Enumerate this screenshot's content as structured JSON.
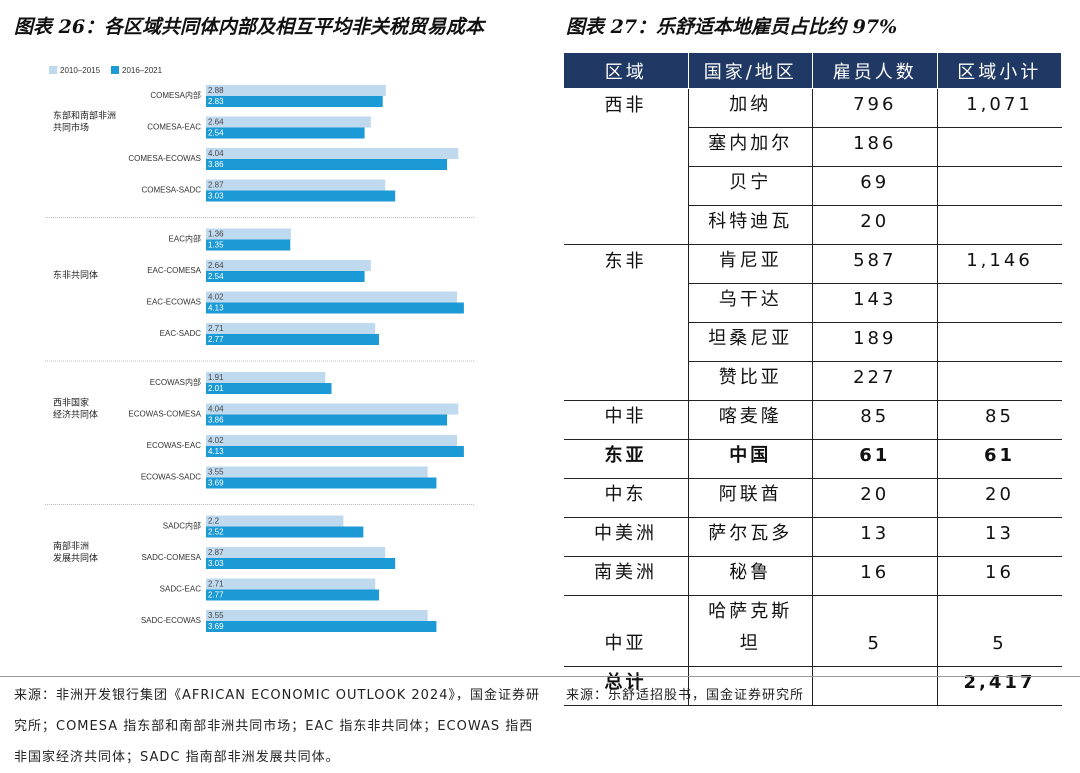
{
  "chart_data": {
    "type": "bar",
    "orientation": "horizontal",
    "title": "图表 26：各区域共同体内部及相互平均非关税贸易成本",
    "groups": [
      {
        "name": [
          "东部和南部非洲",
          "共同市场"
        ],
        "categories": [
          "COMESA内部",
          "COMESA-EAC",
          "COMESA-ECOWAS",
          "COMESA-SADC"
        ]
      },
      {
        "name": [
          "东非共同体"
        ],
        "categories": [
          "EAC内部",
          "EAC-COMESA",
          "EAC-ECOWAS",
          "EAC-SADC"
        ]
      },
      {
        "name": [
          "西非国家",
          "经济共同体"
        ],
        "categories": [
          "ECOWAS内部",
          "ECOWAS-COMESA",
          "ECOWAS-EAC",
          "ECOWAS-SADC"
        ]
      },
      {
        "name": [
          "南部非洲",
          "发展共同体"
        ],
        "categories": [
          "SADC内部",
          "SADC-COMESA",
          "SADC-EAC",
          "SADC-ECOWAS"
        ]
      }
    ],
    "series": [
      {
        "name": "2010–2015",
        "color": "#bfd9ef",
        "values": [
          2.88,
          2.64,
          4.04,
          2.87,
          1.36,
          2.64,
          4.02,
          2.71,
          1.91,
          4.04,
          4.02,
          3.55,
          2.2,
          2.87,
          2.71,
          3.55
        ]
      },
      {
        "name": "2016–2021",
        "color": "#1b9ad6",
        "values": [
          2.83,
          2.54,
          3.86,
          3.03,
          1.35,
          2.54,
          4.13,
          2.77,
          2.01,
          3.86,
          4.13,
          3.69,
          2.52,
          3.03,
          2.77,
          3.69
        ]
      }
    ],
    "xlim": [
      0,
      4.5
    ],
    "legend": "top-left",
    "source": "来源：非洲开发银行集团《AFRICAN ECONOMIC OUTLOOK 2024》，国金证券研究所；COMESA 指东部和南部非洲共同市场；EAC 指东非共同体；ECOWAS 指西非国家经济共同体；SADC 指南部非洲发展共同体。"
  },
  "table": {
    "title": "图表 27：乐舒适本地雇员占比约 97%",
    "header": [
      "区域",
      "国家/地区",
      "雇员人数",
      "区域小计"
    ],
    "rows": [
      {
        "cells": [
          "西非",
          "加纳",
          "796",
          "1,071"
        ]
      },
      {
        "cells": [
          null,
          "塞内加尔",
          "186",
          null
        ]
      },
      {
        "cells": [
          null,
          "贝宁",
          "69",
          null
        ]
      },
      {
        "cells": [
          null,
          "科特迪瓦",
          "20",
          null
        ]
      },
      {
        "cells": [
          "东非",
          "肯尼亚",
          "587",
          "1,146"
        ]
      },
      {
        "cells": [
          null,
          "乌干达",
          "143",
          null
        ]
      },
      {
        "cells": [
          null,
          "坦桑尼亚",
          "189",
          null
        ]
      },
      {
        "cells": [
          null,
          "赞比亚",
          "227",
          null
        ]
      },
      {
        "cells": [
          "中非",
          "喀麦隆",
          "85",
          "85"
        ]
      },
      {
        "cells": [
          "东亚",
          "中国",
          "61",
          "61"
        ],
        "bold": true
      },
      {
        "cells": [
          "中东",
          "阿联酋",
          "20",
          "20"
        ]
      },
      {
        "cells": [
          "中美洲",
          "萨尔瓦多",
          "13",
          "13"
        ]
      },
      {
        "cells": [
          "南美洲",
          "秘鲁",
          "16",
          "16"
        ]
      },
      {
        "cells": [
          "中亚",
          [
            "哈萨克斯",
            "坦"
          ],
          "5",
          "5"
        ]
      },
      {
        "cells": [
          "总计",
          null,
          null,
          "2,417"
        ],
        "bold": true
      }
    ],
    "source": "来源：乐舒适招股书，国金证券研究所"
  }
}
